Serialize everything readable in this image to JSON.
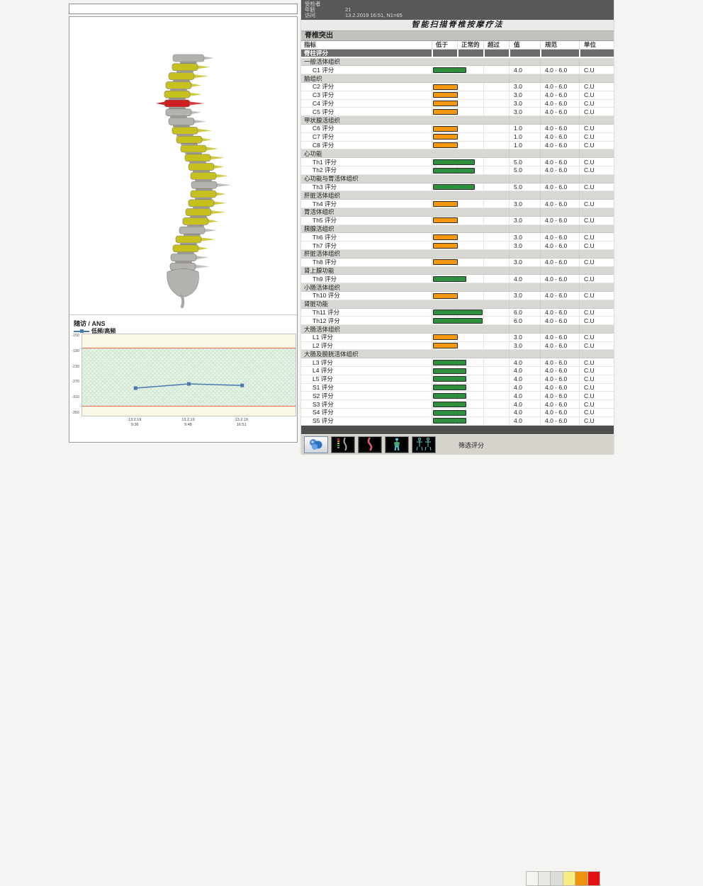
{
  "patient": {
    "examinee_label": "受检者",
    "examinee_value": "",
    "age_label": "年龄",
    "age_value": "21",
    "visit_label": "访问",
    "visit_value": "13.2.2019 16:51, N1=65"
  },
  "report": {
    "title": "智能扫描脊椎按摩疗法",
    "section_title": "脊椎突出",
    "group_header": "脊柱评分"
  },
  "table": {
    "headers": {
      "indicator": "指标",
      "below": "低于",
      "normal": "正常的",
      "above": "超过",
      "value": "值",
      "norm": "规范",
      "unit": "单位"
    },
    "score_suffix": "评分",
    "norm_range": "4.0 - 6.0",
    "unit": "C.U",
    "sections": [
      {
        "label": "一般活体组织",
        "rows": [
          {
            "code": "C1",
            "value": "4.0",
            "level": "normal"
          }
        ]
      },
      {
        "label": "脑组织",
        "rows": [
          {
            "code": "C2",
            "value": "3.0",
            "level": "low"
          },
          {
            "code": "C3",
            "value": "3.0",
            "level": "low"
          },
          {
            "code": "C4",
            "value": "3.0",
            "level": "low"
          },
          {
            "code": "C5",
            "value": "3.0",
            "level": "low"
          }
        ]
      },
      {
        "label": "甲状腺活组织",
        "rows": [
          {
            "code": "C6",
            "value": "1.0",
            "level": "low"
          },
          {
            "code": "C7",
            "value": "1.0",
            "level": "low"
          },
          {
            "code": "C8",
            "value": "1.0",
            "level": "low"
          }
        ]
      },
      {
        "label": "心功能",
        "rows": [
          {
            "code": "Th1",
            "value": "5.0",
            "level": "normal"
          },
          {
            "code": "Th2",
            "value": "5.0",
            "level": "normal"
          }
        ]
      },
      {
        "label": "心功能与胃活体组织",
        "rows": [
          {
            "code": "Th3",
            "value": "5.0",
            "level": "normal"
          }
        ]
      },
      {
        "label": "肝脏活体组织",
        "rows": [
          {
            "code": "Th4",
            "value": "3.0",
            "level": "low"
          }
        ]
      },
      {
        "label": "胃活体组织",
        "rows": [
          {
            "code": "Th5",
            "value": "3.0",
            "level": "low"
          }
        ]
      },
      {
        "label": "胰腺活组织",
        "rows": [
          {
            "code": "Th6",
            "value": "3.0",
            "level": "low"
          },
          {
            "code": "Th7",
            "value": "3.0",
            "level": "low"
          }
        ]
      },
      {
        "label": "肝脏活体组织",
        "rows": [
          {
            "code": "Th8",
            "value": "3.0",
            "level": "low"
          }
        ]
      },
      {
        "label": "肾上腺功能",
        "rows": [
          {
            "code": "Th9",
            "value": "4.0",
            "level": "normal"
          }
        ]
      },
      {
        "label": "小肠活体组织",
        "rows": [
          {
            "code": "Th10",
            "value": "3.0",
            "level": "low"
          }
        ]
      },
      {
        "label": "肾脏功能",
        "rows": [
          {
            "code": "Th11",
            "value": "6.0",
            "level": "normal"
          },
          {
            "code": "Th12",
            "value": "6.0",
            "level": "normal"
          }
        ]
      },
      {
        "label": "大肠活体组织",
        "rows": [
          {
            "code": "L1",
            "value": "3.0",
            "level": "low"
          },
          {
            "code": "L2",
            "value": "3.0",
            "level": "low"
          }
        ]
      },
      {
        "label": "大肠及膀胱活体组织",
        "rows": [
          {
            "code": "L3",
            "value": "4.0",
            "level": "normal"
          },
          {
            "code": "L4",
            "value": "4.0",
            "level": "normal"
          },
          {
            "code": "L5",
            "value": "4.0",
            "level": "normal"
          },
          {
            "code": "S1",
            "value": "4.0",
            "level": "normal"
          },
          {
            "code": "S2",
            "value": "4.0",
            "level": "normal"
          },
          {
            "code": "S3",
            "value": "4.0",
            "level": "normal"
          },
          {
            "code": "S4",
            "value": "4.0",
            "level": "normal"
          },
          {
            "code": "S5",
            "value": "4.0",
            "level": "normal"
          }
        ]
      }
    ]
  },
  "colors": {
    "normal_bar": "#2e8f3e",
    "low_bar": "#f5970f",
    "bar_border": "#2b2b2b",
    "segment_gray": "#b4b2ae",
    "segment_yellow": "#c6c11e",
    "segment_red": "#cc2020",
    "band_edge": "#e06c48",
    "chart_line": "#4878b0"
  },
  "toolbar": {
    "filter_label": "筛选评分",
    "buttons": [
      "3d-model",
      "spine-scan",
      "spine-curve",
      "body-figure",
      "skeleton-views"
    ],
    "swatches": [
      "#f4f4f0",
      "#e8e8e4",
      "#dcdcd8",
      "#f6ec82",
      "#ef930d",
      "#e21212"
    ]
  },
  "chart_data": {
    "type": "line",
    "title": "随访 / ANS",
    "legend": [
      "低频/高频"
    ],
    "x": [
      "13.2.19 9:36",
      "13.2.19 9:48",
      "13.2.19 16:51"
    ],
    "x_labels": [
      [
        "13.2.19",
        "9:36"
      ],
      [
        "13.2.19",
        "9:48"
      ],
      [
        "13.2.19",
        "16:51"
      ]
    ],
    "series": [
      {
        "name": "低频/高频",
        "values": [
          -284,
          -273,
          -277
        ]
      }
    ],
    "ylim": [
      -350,
      -150
    ],
    "yticks": [
      -150,
      -190,
      -230,
      -270,
      -310,
      -350
    ],
    "normal_band": [
      -330,
      -180
    ],
    "grid": false,
    "legend_position": "top-left"
  },
  "spine_view": {
    "segments": [
      "gray",
      "yellow",
      "yellow",
      "yellow",
      "yellow",
      "red",
      "gray",
      "gray",
      "yellow",
      "yellow",
      "yellow",
      "yellow",
      "yellow",
      "yellow",
      "gray",
      "yellow",
      "yellow",
      "yellow",
      "yellow",
      "gray",
      "yellow",
      "yellow",
      "gray",
      "gray"
    ]
  }
}
